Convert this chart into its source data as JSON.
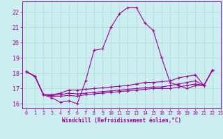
{
  "xlabel": "Windchill (Refroidissement éolien,°C)",
  "xlim": [
    -0.5,
    23
  ],
  "ylim": [
    15.7,
    22.7
  ],
  "yticks": [
    16,
    17,
    18,
    19,
    20,
    21,
    22
  ],
  "xticks": [
    0,
    1,
    2,
    3,
    4,
    5,
    6,
    7,
    8,
    9,
    10,
    11,
    12,
    13,
    14,
    15,
    16,
    17,
    18,
    19,
    20,
    21,
    22,
    23
  ],
  "background_color": "#cceef0",
  "grid_color": "#aad8dc",
  "line_color": "#990099",
  "series": [
    [
      18.1,
      17.8,
      16.6,
      16.4,
      16.1,
      16.2,
      16.0,
      17.5,
      19.5,
      19.6,
      21.0,
      21.9,
      22.3,
      22.3,
      21.3,
      20.8,
      19.0,
      17.4,
      17.2,
      17.0,
      17.2,
      17.2,
      18.2
    ],
    [
      18.1,
      17.8,
      16.6,
      16.6,
      16.7,
      16.9,
      16.9,
      16.95,
      17.0,
      17.05,
      17.1,
      17.15,
      17.2,
      17.3,
      17.4,
      17.4,
      17.45,
      17.5,
      17.7,
      17.8,
      17.9,
      17.2,
      18.2
    ],
    [
      18.1,
      17.8,
      16.6,
      16.55,
      16.6,
      16.7,
      16.65,
      16.7,
      16.75,
      16.8,
      16.85,
      16.9,
      16.95,
      17.0,
      17.05,
      17.1,
      17.1,
      17.2,
      17.3,
      17.4,
      17.5,
      17.2,
      18.2
    ],
    [
      18.1,
      17.8,
      16.6,
      16.5,
      16.5,
      16.55,
      16.5,
      16.6,
      16.65,
      16.7,
      16.75,
      16.8,
      16.85,
      16.9,
      16.95,
      17.0,
      17.0,
      17.0,
      17.1,
      17.2,
      17.3,
      17.2,
      18.2
    ]
  ]
}
